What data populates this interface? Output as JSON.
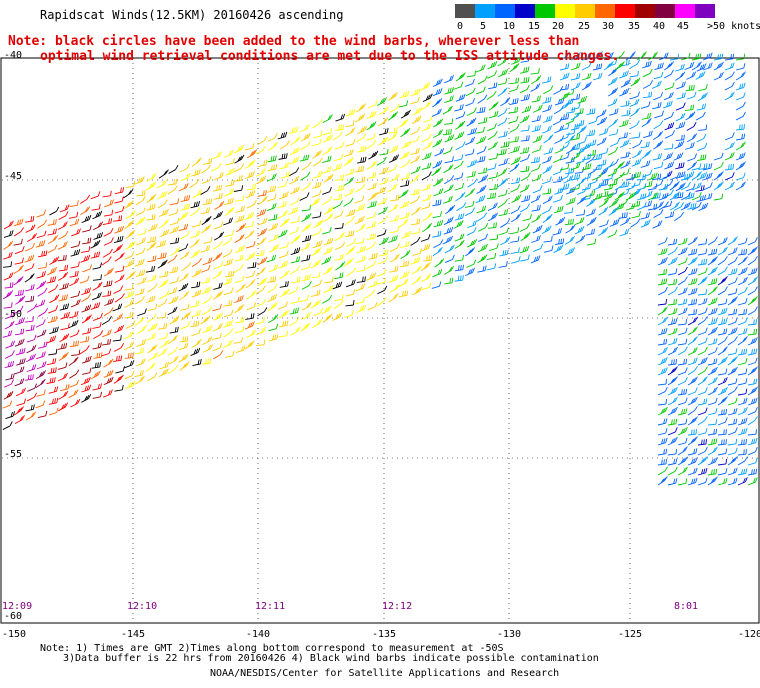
{
  "title": "Rapidscat Winds(12.5KM) 20160426 ascending",
  "note": {
    "line1": "Note: black circles have been added to the wind barbs, wherever less than",
    "line2": "optimal wind retrieval conditions are met due to the ISS attitude changes."
  },
  "colorbar": {
    "colors": [
      "#505050",
      "#00a0ff",
      "#0064ff",
      "#0000c8",
      "#00c800",
      "#ffff00",
      "#ffcc00",
      "#ff6600",
      "#ff0000",
      "#a00000",
      "#800040",
      "#ff00ff",
      "#8000c0"
    ],
    "labels": [
      "0",
      "5",
      "10",
      "15",
      "20",
      "25",
      "30",
      "35",
      "40",
      "45",
      ">50 knots"
    ]
  },
  "axes": {
    "lat_labels": [
      "-40",
      "-45",
      "-50",
      "-55",
      "-60"
    ],
    "lon_labels": [
      "-150",
      "-145",
      "-140",
      "-135",
      "-130",
      "-125",
      "-120"
    ]
  },
  "time_labels": [
    "12:09",
    "12:10",
    "12:11",
    "12:12",
    "8:01"
  ],
  "footer": {
    "line1": "Note: 1) Times are GMT 2)Times along bottom correspond to measurement at -50S",
    "line2": "3)Data buffer is 22 hrs from 20160426 4) Black wind barbs indicate possible contamination",
    "line3": "NOAA/NESDIS/Center for Satellite Applications and Research"
  }
}
